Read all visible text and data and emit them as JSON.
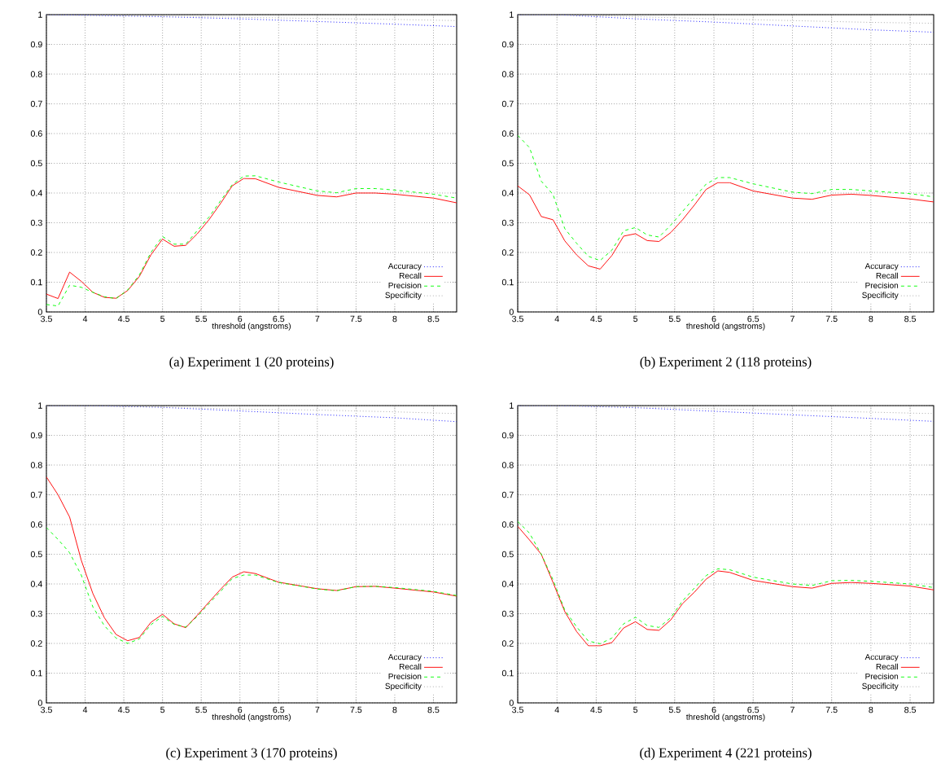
{
  "chart_data": [
    {
      "type": "line",
      "title": "(a)  Experiment 1 (20 proteins)",
      "xlabel": "threshold (angstroms)",
      "xlim": [
        3.5,
        8.8
      ],
      "xticks": [
        3.5,
        4,
        4.5,
        5,
        5.5,
        6,
        6.5,
        7,
        7.5,
        8,
        8.5
      ],
      "ylim": [
        0,
        1
      ],
      "yticks": [
        0,
        0.1,
        0.2,
        0.3,
        0.4,
        0.5,
        0.6,
        0.7,
        0.8,
        0.9,
        1
      ],
      "grid": true,
      "legend": "bottom right",
      "series": [
        {
          "name": "Accuracy",
          "color": "#0000ff",
          "line_style": "dotted",
          "x": [
            3.5,
            4,
            5,
            6,
            7,
            8,
            8.8
          ],
          "values": [
            1,
            0.998,
            0.993,
            0.986,
            0.977,
            0.968,
            0.96
          ]
        },
        {
          "name": "Recall",
          "color": "#ff0000",
          "line_style": "solid",
          "x": [
            3.5,
            3.65,
            3.8,
            3.95,
            4.1,
            4.25,
            4.4,
            4.55,
            4.7,
            4.85,
            5.0,
            5.15,
            5.3,
            5.45,
            5.6,
            5.75,
            5.9,
            6.05,
            6.2,
            6.5,
            7.0,
            7.25,
            7.5,
            7.75,
            8.0,
            8.5,
            8.8
          ],
          "values": [
            0.06,
            0.045,
            0.134,
            0.103,
            0.066,
            0.049,
            0.046,
            0.072,
            0.119,
            0.192,
            0.245,
            0.221,
            0.224,
            0.263,
            0.31,
            0.365,
            0.424,
            0.449,
            0.448,
            0.419,
            0.392,
            0.387,
            0.4,
            0.4,
            0.396,
            0.383,
            0.367
          ]
        },
        {
          "name": "Precision",
          "color": "#00ff00",
          "line_style": "dashed",
          "x": [
            3.5,
            3.65,
            3.8,
            3.95,
            4.1,
            4.25,
            4.4,
            4.55,
            4.7,
            4.85,
            5.0,
            5.15,
            5.3,
            5.45,
            5.6,
            5.75,
            5.9,
            6.05,
            6.2,
            6.5,
            7.0,
            7.25,
            7.5,
            7.75,
            8.0,
            8.5,
            8.8
          ],
          "values": [
            0.025,
            0.02,
            0.09,
            0.083,
            0.066,
            0.051,
            0.045,
            0.074,
            0.124,
            0.2,
            0.254,
            0.228,
            0.228,
            0.274,
            0.319,
            0.374,
            0.428,
            0.457,
            0.458,
            0.437,
            0.407,
            0.401,
            0.415,
            0.415,
            0.41,
            0.396,
            0.383
          ]
        },
        {
          "name": "Specificity",
          "color": "#a0a0a0",
          "line_style": "dotted",
          "x": [
            3.5,
            4,
            5,
            6,
            7,
            8,
            8.8
          ],
          "values": [
            1,
            1,
            0.995,
            0.991,
            0.987,
            0.984,
            0.98
          ]
        }
      ]
    },
    {
      "type": "line",
      "title": "(b)  Experiment 2 (118 proteins)",
      "xlabel": "threshold (angstroms)",
      "xlim": [
        3.5,
        8.8
      ],
      "xticks": [
        3.5,
        4,
        4.5,
        5,
        5.5,
        6,
        6.5,
        7,
        7.5,
        8,
        8.5
      ],
      "ylim": [
        0,
        1
      ],
      "yticks": [
        0,
        0.1,
        0.2,
        0.3,
        0.4,
        0.5,
        0.6,
        0.7,
        0.8,
        0.9,
        1
      ],
      "grid": true,
      "legend": "bottom right",
      "series": [
        {
          "name": "Accuracy",
          "color": "#0000ff",
          "line_style": "dotted",
          "x": [
            3.5,
            4,
            5,
            6,
            7,
            8,
            8.8
          ],
          "values": [
            1,
            1,
            0.986,
            0.975,
            0.962,
            0.949,
            0.941
          ]
        },
        {
          "name": "Recall",
          "color": "#ff0000",
          "line_style": "solid",
          "x": [
            3.5,
            3.65,
            3.8,
            3.95,
            4.1,
            4.25,
            4.4,
            4.55,
            4.7,
            4.85,
            5.0,
            5.15,
            5.3,
            5.45,
            5.6,
            5.75,
            5.9,
            6.05,
            6.2,
            6.5,
            7.0,
            7.25,
            7.5,
            7.75,
            8.0,
            8.5,
            8.8
          ],
          "values": [
            0.424,
            0.394,
            0.321,
            0.31,
            0.239,
            0.192,
            0.155,
            0.144,
            0.19,
            0.255,
            0.263,
            0.24,
            0.237,
            0.267,
            0.31,
            0.359,
            0.412,
            0.435,
            0.435,
            0.407,
            0.383,
            0.379,
            0.393,
            0.396,
            0.392,
            0.38,
            0.37
          ]
        },
        {
          "name": "Precision",
          "color": "#00ff00",
          "line_style": "dashed",
          "x": [
            3.5,
            3.65,
            3.8,
            3.95,
            4.1,
            4.25,
            4.4,
            4.55,
            4.7,
            4.85,
            5.0,
            5.15,
            5.3,
            5.45,
            5.6,
            5.75,
            5.9,
            6.05,
            6.2,
            6.5,
            7.0,
            7.25,
            7.5,
            7.75,
            8.0,
            8.5,
            8.8
          ],
          "values": [
            0.594,
            0.553,
            0.44,
            0.395,
            0.28,
            0.231,
            0.187,
            0.173,
            0.208,
            0.273,
            0.284,
            0.259,
            0.252,
            0.292,
            0.338,
            0.384,
            0.43,
            0.452,
            0.452,
            0.431,
            0.403,
            0.398,
            0.412,
            0.412,
            0.407,
            0.398,
            0.387
          ]
        },
        {
          "name": "Specificity",
          "color": "#a0a0a0",
          "line_style": "dotted",
          "x": [
            3.5,
            4,
            5,
            6,
            7,
            8,
            8.8
          ],
          "values": [
            1,
            1,
            0.993,
            0.986,
            0.98,
            0.974,
            0.971
          ]
        }
      ]
    },
    {
      "type": "line",
      "title": "(c)  Experiment 3 (170 proteins)",
      "xlabel": "threshold (angstroms)",
      "xlim": [
        3.5,
        8.8
      ],
      "xticks": [
        3.5,
        4,
        4.5,
        5,
        5.5,
        6,
        6.5,
        7,
        7.5,
        8,
        8.5
      ],
      "ylim": [
        0,
        1
      ],
      "yticks": [
        0,
        0.1,
        0.2,
        0.3,
        0.4,
        0.5,
        0.6,
        0.7,
        0.8,
        0.9,
        1
      ],
      "grid": true,
      "legend": "bottom right",
      "series": [
        {
          "name": "Accuracy",
          "color": "#0000ff",
          "line_style": "dotted",
          "x": [
            3.5,
            4,
            5,
            6,
            7,
            8,
            8.8
          ],
          "values": [
            1,
            1,
            0.994,
            0.982,
            0.97,
            0.959,
            0.946
          ]
        },
        {
          "name": "Recall",
          "color": "#ff0000",
          "line_style": "solid",
          "x": [
            3.5,
            3.65,
            3.8,
            3.95,
            4.1,
            4.25,
            4.4,
            4.55,
            4.7,
            4.85,
            5.0,
            5.15,
            5.3,
            5.45,
            5.6,
            5.75,
            5.9,
            6.05,
            6.2,
            6.5,
            7.0,
            7.25,
            7.5,
            7.75,
            8.0,
            8.5,
            8.8
          ],
          "values": [
            0.76,
            0.7,
            0.625,
            0.48,
            0.368,
            0.286,
            0.23,
            0.209,
            0.22,
            0.271,
            0.298,
            0.266,
            0.253,
            0.295,
            0.339,
            0.382,
            0.423,
            0.441,
            0.435,
            0.406,
            0.384,
            0.378,
            0.391,
            0.392,
            0.386,
            0.373,
            0.359
          ]
        },
        {
          "name": "Precision",
          "color": "#00ff00",
          "line_style": "dashed",
          "x": [
            3.5,
            3.65,
            3.8,
            3.95,
            4.1,
            4.25,
            4.4,
            4.55,
            4.7,
            4.85,
            5.0,
            5.15,
            5.3,
            5.45,
            5.6,
            5.75,
            5.9,
            6.05,
            6.2,
            6.5,
            7.0,
            7.25,
            7.5,
            7.75,
            8.0,
            8.5,
            8.8
          ],
          "values": [
            0.59,
            0.55,
            0.505,
            0.43,
            0.323,
            0.259,
            0.218,
            0.2,
            0.215,
            0.263,
            0.291,
            0.264,
            0.255,
            0.291,
            0.334,
            0.375,
            0.418,
            0.43,
            0.43,
            0.405,
            0.383,
            0.377,
            0.391,
            0.392,
            0.388,
            0.375,
            0.361
          ]
        },
        {
          "name": "Specificity",
          "color": "#a0a0a0",
          "line_style": "dotted",
          "x": [
            3.5,
            4,
            5,
            6,
            7,
            8,
            8.8
          ],
          "values": [
            1,
            1,
            0.995,
            0.988,
            0.985,
            0.979,
            0.973
          ]
        }
      ]
    },
    {
      "type": "line",
      "title": "(d)  Experiment 4 (221 proteins)",
      "xlabel": "threshold (angstroms)",
      "xlim": [
        3.5,
        8.8
      ],
      "xticks": [
        3.5,
        4,
        4.5,
        5,
        5.5,
        6,
        6.5,
        7,
        7.5,
        8,
        8.5
      ],
      "ylim": [
        0,
        1
      ],
      "yticks": [
        0,
        0.1,
        0.2,
        0.3,
        0.4,
        0.5,
        0.6,
        0.7,
        0.8,
        0.9,
        1
      ],
      "grid": true,
      "legend": "bottom right",
      "series": [
        {
          "name": "Accuracy",
          "color": "#0000ff",
          "line_style": "dotted",
          "x": [
            3.5,
            4,
            5,
            6,
            7,
            8,
            8.8
          ],
          "values": [
            1,
            1,
            0.993,
            0.981,
            0.969,
            0.957,
            0.947
          ]
        },
        {
          "name": "Recall",
          "color": "#ff0000",
          "line_style": "solid",
          "x": [
            3.5,
            3.65,
            3.8,
            3.95,
            4.1,
            4.25,
            4.4,
            4.55,
            4.7,
            4.85,
            5.0,
            5.15,
            5.3,
            5.45,
            5.6,
            5.75,
            5.9,
            6.05,
            6.2,
            6.5,
            7.0,
            7.25,
            7.5,
            7.75,
            8.0,
            8.5,
            8.8
          ],
          "values": [
            0.594,
            0.548,
            0.5,
            0.405,
            0.307,
            0.24,
            0.192,
            0.192,
            0.203,
            0.252,
            0.273,
            0.247,
            0.244,
            0.279,
            0.334,
            0.372,
            0.416,
            0.444,
            0.439,
            0.412,
            0.391,
            0.386,
            0.402,
            0.405,
            0.402,
            0.393,
            0.38
          ]
        },
        {
          "name": "Precision",
          "color": "#00ff00",
          "line_style": "dashed",
          "x": [
            3.5,
            3.65,
            3.8,
            3.95,
            4.1,
            4.25,
            4.4,
            4.55,
            4.7,
            4.85,
            5.0,
            5.15,
            5.3,
            5.45,
            5.6,
            5.75,
            5.9,
            6.05,
            6.2,
            6.5,
            7.0,
            7.25,
            7.5,
            7.75,
            8.0,
            8.5,
            8.8
          ],
          "values": [
            0.61,
            0.571,
            0.5,
            0.414,
            0.312,
            0.256,
            0.208,
            0.199,
            0.218,
            0.266,
            0.288,
            0.26,
            0.254,
            0.287,
            0.343,
            0.386,
            0.428,
            0.451,
            0.448,
            0.423,
            0.4,
            0.395,
            0.411,
            0.412,
            0.409,
            0.4,
            0.388
          ]
        },
        {
          "name": "Specificity",
          "color": "#a0a0a0",
          "line_style": "dotted",
          "x": [
            3.5,
            4,
            5,
            6,
            7,
            8,
            8.8
          ],
          "values": [
            1,
            1,
            0.995,
            0.989,
            0.984,
            0.978,
            0.973
          ]
        }
      ]
    }
  ]
}
